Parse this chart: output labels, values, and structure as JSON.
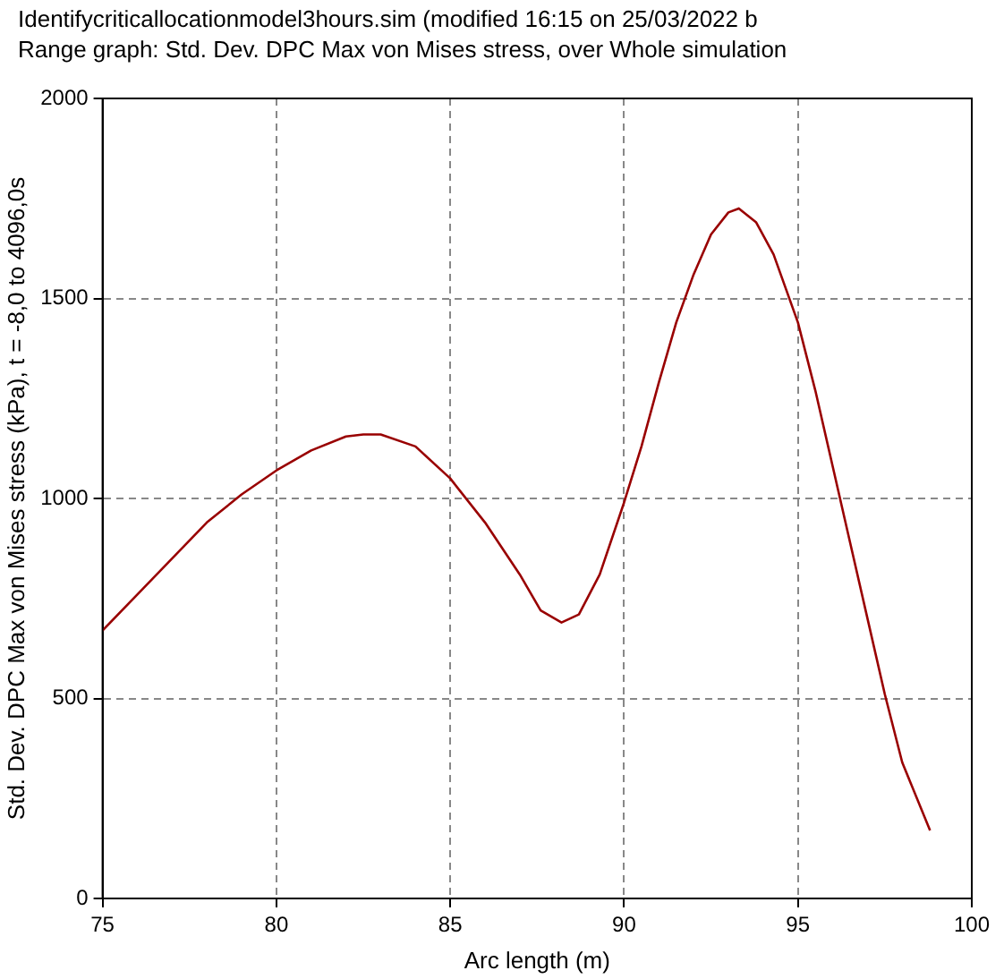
{
  "chart_data": {
    "type": "line",
    "title": "Identifycriticallocationmodel3hours.sim (modified 16:15 on 25/03/2022 b",
    "subtitle": "Range graph: Std. Dev. DPC Max von Mises stress, over Whole simulation",
    "xlabel": "Arc length (m)",
    "ylabel": "Std. Dev. DPC Max von Mises stress (kPa), t = -8,0 to 4096,0s",
    "x": [
      75,
      76,
      77,
      78,
      79,
      80,
      81,
      82,
      82.5,
      83,
      84,
      85,
      86,
      87,
      87.6,
      88.2,
      88.7,
      89.3,
      90,
      90.5,
      91,
      91.5,
      92,
      92.5,
      93,
      93.3,
      93.8,
      94.3,
      95,
      95.5,
      96,
      96.5,
      97,
      97.5,
      98,
      98.8
    ],
    "series": [
      {
        "color": "#990000",
        "values": [
          670,
          760,
          850,
          940,
          1010,
          1070,
          1120,
          1155,
          1160,
          1160,
          1130,
          1050,
          940,
          810,
          720,
          690,
          710,
          810,
          990,
          1130,
          1290,
          1440,
          1560,
          1660,
          1715,
          1725,
          1690,
          1610,
          1440,
          1270,
          1080,
          890,
          700,
          510,
          340,
          170
        ]
      }
    ],
    "xlim": [
      75,
      100
    ],
    "xticks": [
      75,
      80,
      85,
      90,
      95,
      100
    ],
    "ylim": [
      0,
      2000
    ],
    "yticks": [
      0,
      500,
      1000,
      1500,
      2000
    ],
    "grid": true,
    "legend": false,
    "marker": "none",
    "line_style": "solid"
  }
}
